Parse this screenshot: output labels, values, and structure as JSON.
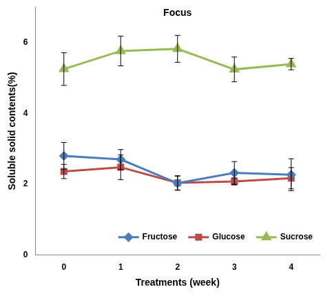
{
  "chart_data": {
    "type": "line",
    "title": "Focus",
    "x_label": "Treatments (week)",
    "y_label": "Soluble solid contents(%)",
    "categories": [
      "0",
      "1",
      "2",
      "3",
      "4"
    ],
    "series": [
      {
        "name": "Fructose",
        "color": "#4a7ebb",
        "marker": "diamond",
        "values": [
          2.8,
          2.7,
          2.03,
          2.32,
          2.27
        ],
        "errors": [
          0.38,
          0.28,
          0.2,
          0.32,
          0.45
        ]
      },
      {
        "name": "Glucose",
        "color": "#be4b48",
        "marker": "square",
        "values": [
          2.36,
          2.48,
          2.04,
          2.08,
          2.17
        ],
        "errors": [
          0.2,
          0.35,
          0.2,
          0.1,
          0.3
        ]
      },
      {
        "name": "Sucrose",
        "color": "#98b954",
        "marker": "triangle",
        "values": [
          5.25,
          5.76,
          5.82,
          5.24,
          5.39
        ],
        "errors": [
          0.46,
          0.42,
          0.38,
          0.35,
          0.16
        ]
      }
    ],
    "ylim": [
      0,
      7
    ],
    "yticks": [
      0,
      2,
      4,
      6
    ],
    "grid": false,
    "legend": "lower right"
  }
}
